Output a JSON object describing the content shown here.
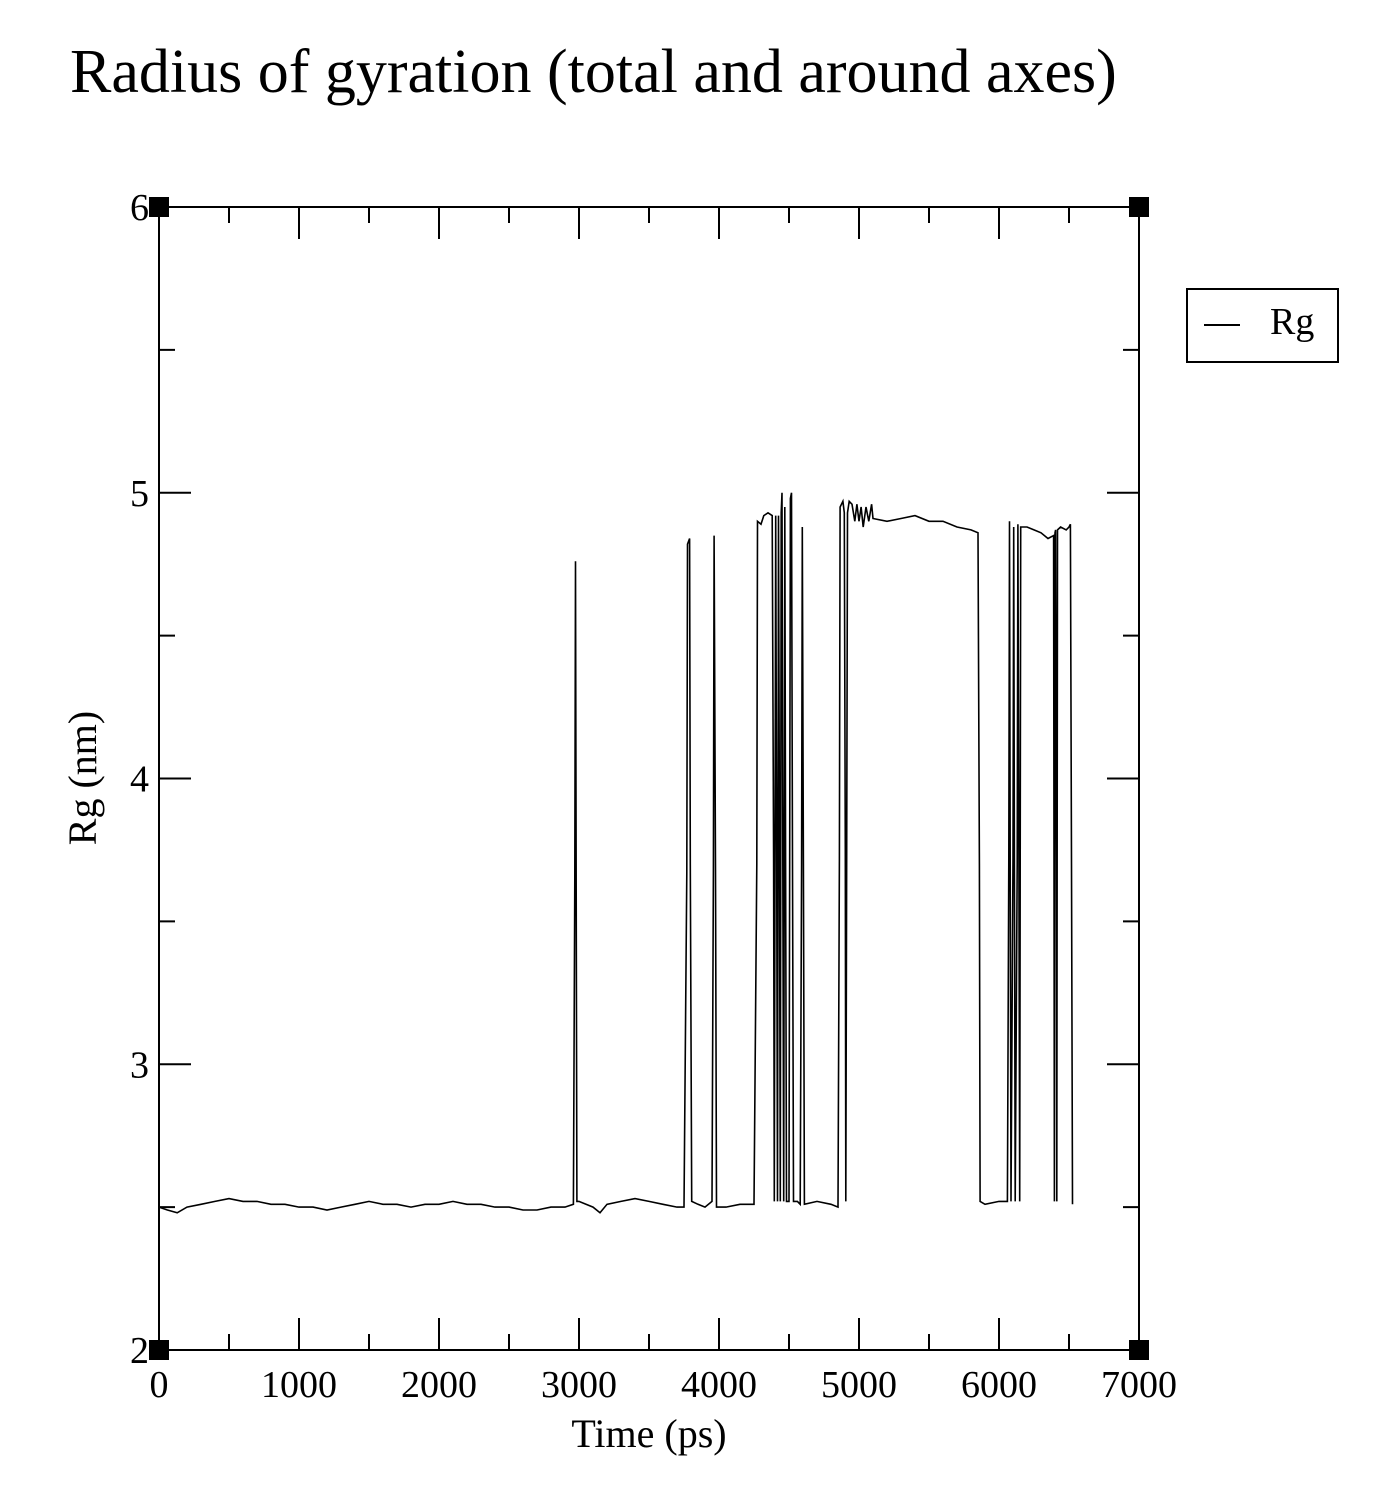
{
  "chart_data": {
    "type": "line",
    "title": "Radius of gyration (total and around axes)",
    "xlabel": "Time (ps)",
    "ylabel": "Rg (nm)",
    "xlim": [
      0,
      7000
    ],
    "ylim": [
      2,
      6
    ],
    "xticks": [
      0,
      1000,
      2000,
      3000,
      4000,
      5000,
      6000,
      7000
    ],
    "yticks": [
      2,
      3,
      4,
      5,
      6
    ],
    "grid": false,
    "legend_position": "right",
    "series": [
      {
        "name": "Rg",
        "color": "#000000",
        "points": [
          [
            0,
            2.5
          ],
          [
            60,
            2.49
          ],
          [
            130,
            2.48
          ],
          [
            200,
            2.5
          ],
          [
            300,
            2.51
          ],
          [
            400,
            2.52
          ],
          [
            500,
            2.53
          ],
          [
            600,
            2.52
          ],
          [
            700,
            2.52
          ],
          [
            800,
            2.51
          ],
          [
            900,
            2.51
          ],
          [
            1000,
            2.5
          ],
          [
            1100,
            2.5
          ],
          [
            1200,
            2.49
          ],
          [
            1300,
            2.5
          ],
          [
            1400,
            2.51
          ],
          [
            1500,
            2.52
          ],
          [
            1600,
            2.51
          ],
          [
            1700,
            2.51
          ],
          [
            1800,
            2.5
          ],
          [
            1900,
            2.51
          ],
          [
            2000,
            2.51
          ],
          [
            2100,
            2.52
          ],
          [
            2200,
            2.51
          ],
          [
            2300,
            2.51
          ],
          [
            2400,
            2.5
          ],
          [
            2500,
            2.5
          ],
          [
            2600,
            2.49
          ],
          [
            2700,
            2.49
          ],
          [
            2800,
            2.5
          ],
          [
            2900,
            2.5
          ],
          [
            2960,
            2.51
          ],
          [
            2970,
            3.65
          ],
          [
            2975,
            4.76
          ],
          [
            2980,
            3.6
          ],
          [
            2985,
            2.52
          ],
          [
            3000,
            2.52
          ],
          [
            3100,
            2.5
          ],
          [
            3150,
            2.48
          ],
          [
            3200,
            2.51
          ],
          [
            3300,
            2.52
          ],
          [
            3400,
            2.53
          ],
          [
            3500,
            2.52
          ],
          [
            3600,
            2.51
          ],
          [
            3700,
            2.5
          ],
          [
            3750,
            2.5
          ],
          [
            3770,
            3.67
          ],
          [
            3775,
            4.82
          ],
          [
            3790,
            4.84
          ],
          [
            3795,
            3.7
          ],
          [
            3805,
            2.52
          ],
          [
            3850,
            2.51
          ],
          [
            3900,
            2.5
          ],
          [
            3950,
            2.52
          ],
          [
            3960,
            3.68
          ],
          [
            3965,
            4.85
          ],
          [
            3975,
            3.68
          ],
          [
            3982,
            2.5
          ],
          [
            4050,
            2.5
          ],
          [
            4150,
            2.51
          ],
          [
            4250,
            2.51
          ],
          [
            4270,
            3.7
          ],
          [
            4275,
            4.9
          ],
          [
            4300,
            4.89
          ],
          [
            4320,
            4.92
          ],
          [
            4350,
            4.93
          ],
          [
            4380,
            4.92
          ],
          [
            4390,
            3.72
          ],
          [
            4395,
            2.52
          ],
          [
            4405,
            4.92
          ],
          [
            4412,
            3.72
          ],
          [
            4418,
            2.52
          ],
          [
            4425,
            4.92
          ],
          [
            4432,
            3.72
          ],
          [
            4438,
            2.52
          ],
          [
            4444,
            4.93
          ],
          [
            4450,
            5.0
          ],
          [
            4456,
            3.72
          ],
          [
            4462,
            2.52
          ],
          [
            4470,
            4.95
          ],
          [
            4476,
            3.7
          ],
          [
            4482,
            2.52
          ],
          [
            4500,
            2.52
          ],
          [
            4510,
            4.98
          ],
          [
            4518,
            5.0
          ],
          [
            4525,
            3.7
          ],
          [
            4532,
            2.52
          ],
          [
            4560,
            2.52
          ],
          [
            4580,
            2.51
          ],
          [
            4590,
            3.7
          ],
          [
            4595,
            4.88
          ],
          [
            4603,
            3.7
          ],
          [
            4610,
            2.51
          ],
          [
            4700,
            2.52
          ],
          [
            4800,
            2.51
          ],
          [
            4850,
            2.5
          ],
          [
            4860,
            3.72
          ],
          [
            4865,
            4.95
          ],
          [
            4885,
            4.97
          ],
          [
            4895,
            4.93
          ],
          [
            4902,
            3.75
          ],
          [
            4906,
            2.52
          ],
          [
            4912,
            3.75
          ],
          [
            4918,
            4.93
          ],
          [
            4930,
            4.97
          ],
          [
            4950,
            4.96
          ],
          [
            4970,
            4.9
          ],
          [
            4985,
            4.96
          ],
          [
            5000,
            4.9
          ],
          [
            5015,
            4.95
          ],
          [
            5030,
            4.88
          ],
          [
            5050,
            4.95
          ],
          [
            5070,
            4.9
          ],
          [
            5090,
            4.96
          ],
          [
            5100,
            4.91
          ],
          [
            5200,
            4.9
          ],
          [
            5300,
            4.91
          ],
          [
            5400,
            4.92
          ],
          [
            5500,
            4.9
          ],
          [
            5600,
            4.9
          ],
          [
            5700,
            4.88
          ],
          [
            5800,
            4.87
          ],
          [
            5850,
            4.86
          ],
          [
            5860,
            3.7
          ],
          [
            5865,
            2.52
          ],
          [
            5900,
            2.51
          ],
          [
            6000,
            2.52
          ],
          [
            6060,
            2.52
          ],
          [
            6070,
            3.72
          ],
          [
            6075,
            4.9
          ],
          [
            6080,
            3.72
          ],
          [
            6086,
            2.52
          ],
          [
            6100,
            3.72
          ],
          [
            6105,
            4.88
          ],
          [
            6110,
            3.72
          ],
          [
            6116,
            2.52
          ],
          [
            6130,
            3.7
          ],
          [
            6135,
            4.89
          ],
          [
            6142,
            3.7
          ],
          [
            6148,
            2.52
          ],
          [
            6155,
            4.88
          ],
          [
            6200,
            4.88
          ],
          [
            6250,
            4.87
          ],
          [
            6300,
            4.86
          ],
          [
            6350,
            4.84
          ],
          [
            6390,
            4.85
          ],
          [
            6393,
            3.7
          ],
          [
            6396,
            2.52
          ],
          [
            6400,
            4.86
          ],
          [
            6404,
            4.87
          ],
          [
            6410,
            3.7
          ],
          [
            6413,
            2.52
          ],
          [
            6418,
            4.87
          ],
          [
            6440,
            4.88
          ],
          [
            6480,
            4.87
          ],
          [
            6500,
            4.88
          ],
          [
            6510,
            4.89
          ],
          [
            6518,
            3.7
          ],
          [
            6525,
            2.51
          ]
        ]
      }
    ]
  }
}
